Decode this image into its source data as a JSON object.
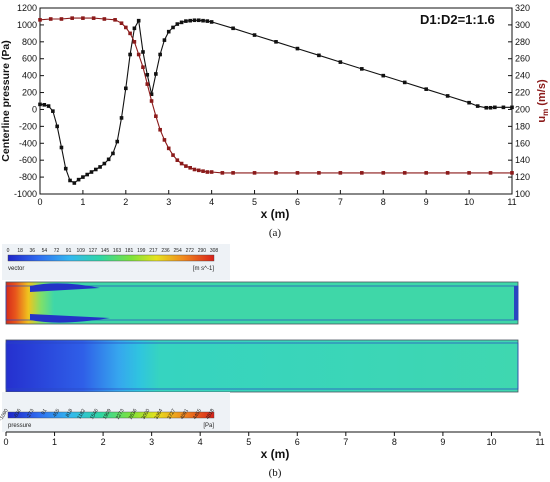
{
  "chart_data": [
    {
      "type": "line",
      "annotation": "D1:D2=1:1.6",
      "xlabel": "x (m)",
      "ylabel": "Centerline pressure (Pa)",
      "ylabel_right": "u",
      "ylabel_right_sub": "m",
      "ylabel_right_unit": " (m/s)",
      "xlim": [
        0,
        11
      ],
      "ylim": [
        -1000,
        1200
      ],
      "ylim_right": [
        100,
        320
      ],
      "xticks": [
        "0",
        "1",
        "2",
        "3",
        "4",
        "5",
        "6",
        "7",
        "8",
        "9",
        "10",
        "11"
      ],
      "yticks": [
        "-1000",
        "-800",
        "-600",
        "-400",
        "-200",
        "0",
        "200",
        "400",
        "600",
        "800",
        "1000",
        "1200"
      ],
      "yticks_right": [
        "100",
        "120",
        "140",
        "160",
        "180",
        "200",
        "220",
        "240",
        "260",
        "280",
        "300",
        "320"
      ],
      "series": [
        {
          "axis": "left",
          "color": "#111111",
          "x": [
            0,
            0.1,
            0.2,
            0.3,
            0.4,
            0.5,
            0.6,
            0.7,
            0.8,
            0.9,
            1.0,
            1.1,
            1.2,
            1.3,
            1.4,
            1.5,
            1.6,
            1.7,
            1.8,
            1.9,
            2.0,
            2.1,
            2.2,
            2.3,
            2.4,
            2.5,
            2.6,
            2.7,
            2.8,
            2.9,
            3.0,
            3.1,
            3.2,
            3.3,
            3.4,
            3.5,
            3.6,
            3.7,
            3.8,
            3.9,
            4.0,
            4.5,
            5.0,
            5.5,
            6.0,
            6.5,
            7.0,
            7.5,
            8.0,
            8.5,
            9.0,
            9.5,
            10.0,
            10.2,
            10.4,
            10.5,
            10.6,
            10.8,
            11.0
          ],
          "y": [
            60,
            55,
            40,
            -20,
            -200,
            -450,
            -700,
            -840,
            -870,
            -830,
            -800,
            -770,
            -740,
            -710,
            -680,
            -640,
            -590,
            -520,
            -380,
            -100,
            250,
            650,
            960,
            1050,
            680,
            410,
            180,
            420,
            650,
            820,
            920,
            970,
            1010,
            1030,
            1045,
            1050,
            1055,
            1055,
            1050,
            1045,
            1035,
            960,
            880,
            800,
            720,
            640,
            560,
            480,
            400,
            320,
            240,
            160,
            80,
            40,
            20,
            20,
            25,
            25,
            25
          ]
        },
        {
          "axis": "right",
          "color": "#8b1a1a",
          "x": [
            0,
            0.25,
            0.5,
            0.75,
            1.0,
            1.25,
            1.5,
            1.75,
            1.9,
            2.0,
            2.1,
            2.2,
            2.3,
            2.4,
            2.5,
            2.6,
            2.7,
            2.8,
            2.9,
            3.0,
            3.1,
            3.2,
            3.3,
            3.4,
            3.5,
            3.6,
            3.7,
            3.8,
            3.9,
            4.0,
            4.25,
            4.5,
            5,
            5.5,
            6,
            6.5,
            7,
            7.5,
            8,
            8.5,
            9,
            9.5,
            10,
            10.5,
            11
          ],
          "y": [
            306,
            307,
            307,
            308,
            308,
            308,
            307,
            306,
            302,
            297,
            290,
            280,
            265,
            250,
            230,
            210,
            192,
            176,
            164,
            154,
            146,
            140,
            136,
            133,
            131,
            129,
            128,
            127,
            126,
            126,
            125,
            125,
            125,
            125,
            125,
            125,
            125,
            125,
            125,
            125,
            125,
            125,
            125,
            125,
            125
          ]
        }
      ]
    },
    {
      "type": "heatmap",
      "xlabel": "x (m)",
      "xticks": [
        "0",
        "1",
        "2",
        "3",
        "4",
        "5",
        "6",
        "7",
        "8",
        "9",
        "10",
        "11"
      ],
      "velocity_legend_title": "vector",
      "velocity_legend_unit": "[m s^-1]",
      "velocity_legend_ticks": [
        "0",
        "18",
        "36",
        "54",
        "72",
        "91",
        "109",
        "127",
        "145",
        "163",
        "181",
        "199",
        "217",
        "236",
        "254",
        "272",
        "290",
        "308"
      ],
      "pressure_legend_title": "pressure",
      "pressure_legend_unit": "[Pa]",
      "pressure_legend_ticks": [
        "-1090",
        "-636",
        "-273",
        "91",
        "455",
        "818",
        "1182",
        "1546",
        "1909",
        "2273",
        "2636",
        "3000",
        "3364",
        "3727",
        "4091",
        "4455",
        "4818"
      ]
    }
  ],
  "captions": {
    "a": "(a)",
    "b": "(b)"
  }
}
